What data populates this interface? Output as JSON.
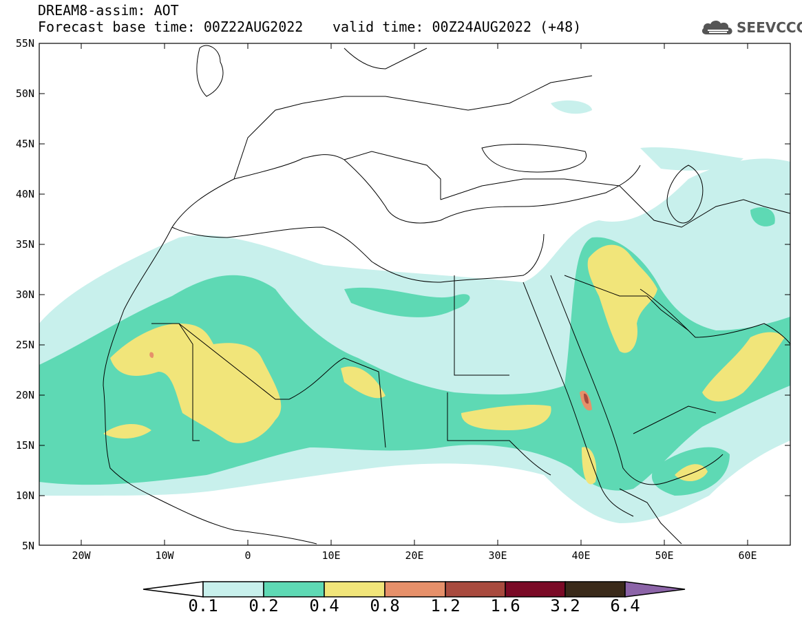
{
  "title": {
    "line1": "DREAM8-assim: AOT",
    "base_time": "Forecast base time: 00Z22AUG2022",
    "valid_time": "valid time: 00Z24AUG2022 (+48)"
  },
  "logo": {
    "text": "SEEVCCC",
    "icon": "cloud-logo-icon"
  },
  "axes": {
    "y_labels": [
      "55N",
      "50N",
      "45N",
      "40N",
      "35N",
      "30N",
      "25N",
      "20N",
      "15N",
      "10N",
      "5N"
    ],
    "x_labels": [
      "20W",
      "10W",
      "0",
      "10E",
      "20E",
      "30E",
      "40E",
      "50E",
      "60E"
    ],
    "lon_range": [
      -25,
      65
    ],
    "lat_range": [
      5,
      55
    ]
  },
  "colorbar": {
    "labels": [
      "0.1",
      "0.2",
      "0.4",
      "0.8",
      "1.2",
      "1.6",
      "3.2",
      "6.4"
    ],
    "colors": [
      "#ffffff",
      "#c8f0ec",
      "#5ed9b4",
      "#f1e57a",
      "#e6906a",
      "#a84a3e",
      "#7a0a26",
      "#3a2a1a",
      "#8c64a8"
    ]
  }
}
